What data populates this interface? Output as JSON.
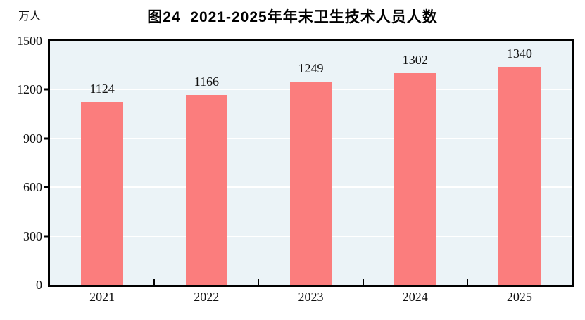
{
  "chart_data": {
    "type": "bar",
    "title": "图24  2021-2025年年末卫生技术人员人数",
    "unit_label": "万人",
    "categories": [
      "2021",
      "2022",
      "2023",
      "2024",
      "2025"
    ],
    "values": [
      1124,
      1166,
      1249,
      1302,
      1340
    ],
    "xlabel": "",
    "ylabel": "万人",
    "ylim": [
      0,
      1500
    ],
    "yticks": [
      0,
      300,
      600,
      900,
      1200,
      1500
    ],
    "grid": true,
    "legend": "none",
    "colors": {
      "bar": "#FB7D7D",
      "plot_background": "#EBF3F7",
      "gridline": "#FFFFFF",
      "axis": "#000000",
      "text": "#111111"
    }
  }
}
